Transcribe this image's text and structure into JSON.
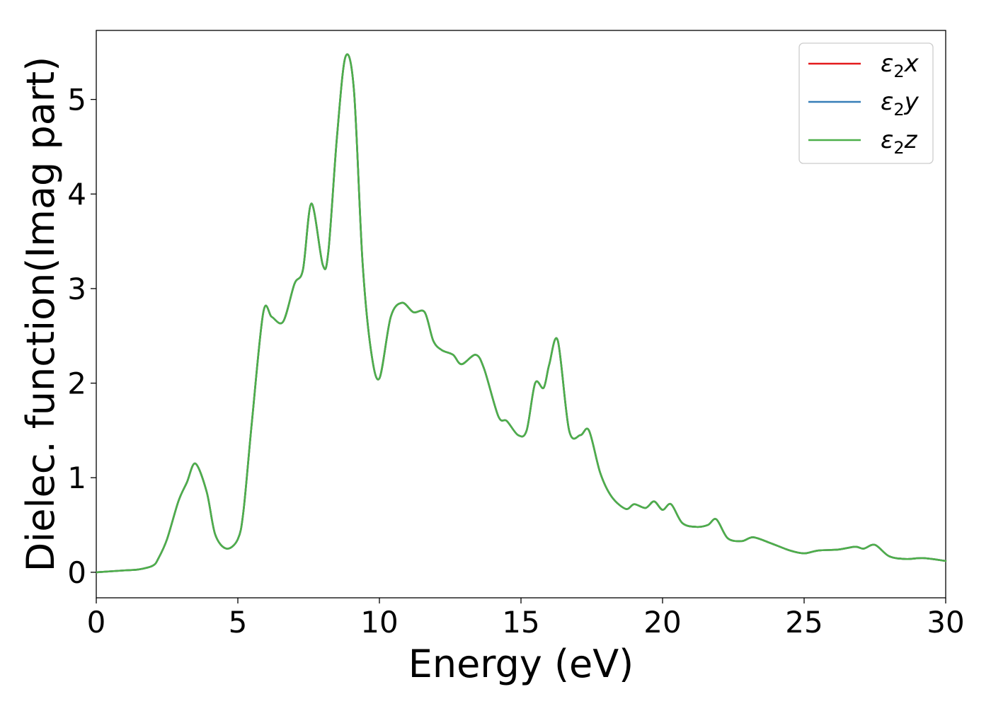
{
  "chart_data": {
    "type": "line",
    "title": "",
    "xlabel": "Energy (eV)",
    "ylabel": "Dielec. function(Imag part)",
    "xlim": [
      0,
      30
    ],
    "ylim": [
      -0.27,
      5.73
    ],
    "xticks": [
      0,
      5,
      10,
      15,
      20,
      25,
      30
    ],
    "yticks": [
      0,
      1,
      2,
      3,
      4,
      5
    ],
    "grid": false,
    "legend_position": "top-right",
    "series": [
      {
        "name": "ε2x",
        "label_main": "ε",
        "label_sub": "2",
        "label_suffix": "x",
        "color": "#e41a1c",
        "x": [
          0,
          1,
          1.5,
          2,
          2.2,
          2.5,
          2.9,
          3.2,
          3.5,
          3.9,
          4.2,
          4.6,
          5.0,
          5.2,
          5.5,
          5.9,
          6.2,
          6.6,
          7.0,
          7.3,
          7.6,
          8.0,
          8.2,
          8.5,
          8.8,
          9.1,
          9.4,
          9.7,
          10.0,
          10.4,
          10.8,
          11.2,
          11.6,
          11.9,
          12.2,
          12.6,
          12.9,
          13.4,
          13.7,
          14.2,
          14.5,
          14.9,
          15.2,
          15.5,
          15.8,
          16.0,
          16.3,
          16.7,
          17.1,
          17.4,
          17.8,
          18.2,
          18.7,
          19.0,
          19.4,
          19.7,
          20.0,
          20.3,
          20.7,
          21.2,
          21.6,
          21.9,
          22.3,
          22.8,
          23.2,
          23.8,
          24.5,
          25.0,
          25.5,
          26.2,
          26.8,
          27.1,
          27.5,
          28.0,
          28.6,
          29.2,
          30.0
        ],
        "y": [
          0.0,
          0.02,
          0.03,
          0.07,
          0.15,
          0.35,
          0.75,
          0.95,
          1.15,
          0.85,
          0.4,
          0.25,
          0.35,
          0.65,
          1.6,
          2.75,
          2.7,
          2.65,
          3.05,
          3.2,
          3.9,
          3.25,
          3.4,
          4.6,
          5.45,
          5.1,
          3.3,
          2.35,
          2.05,
          2.7,
          2.85,
          2.75,
          2.75,
          2.45,
          2.35,
          2.3,
          2.2,
          2.3,
          2.15,
          1.65,
          1.6,
          1.45,
          1.5,
          2.0,
          1.95,
          2.2,
          2.45,
          1.5,
          1.45,
          1.5,
          1.05,
          0.8,
          0.67,
          0.72,
          0.68,
          0.75,
          0.66,
          0.72,
          0.52,
          0.48,
          0.5,
          0.56,
          0.36,
          0.33,
          0.37,
          0.31,
          0.23,
          0.2,
          0.23,
          0.24,
          0.27,
          0.25,
          0.29,
          0.17,
          0.14,
          0.15,
          0.12
        ]
      },
      {
        "name": "ε2y",
        "label_main": "ε",
        "label_sub": "2",
        "label_suffix": "y",
        "color": "#377eb8",
        "x": [
          0,
          1,
          1.5,
          2,
          2.2,
          2.5,
          2.9,
          3.2,
          3.5,
          3.9,
          4.2,
          4.6,
          5.0,
          5.2,
          5.5,
          5.9,
          6.2,
          6.6,
          7.0,
          7.3,
          7.6,
          8.0,
          8.2,
          8.5,
          8.8,
          9.1,
          9.4,
          9.7,
          10.0,
          10.4,
          10.8,
          11.2,
          11.6,
          11.9,
          12.2,
          12.6,
          12.9,
          13.4,
          13.7,
          14.2,
          14.5,
          14.9,
          15.2,
          15.5,
          15.8,
          16.0,
          16.3,
          16.7,
          17.1,
          17.4,
          17.8,
          18.2,
          18.7,
          19.0,
          19.4,
          19.7,
          20.0,
          20.3,
          20.7,
          21.2,
          21.6,
          21.9,
          22.3,
          22.8,
          23.2,
          23.8,
          24.5,
          25.0,
          25.5,
          26.2,
          26.8,
          27.1,
          27.5,
          28.0,
          28.6,
          29.2,
          30.0
        ],
        "y": [
          0.0,
          0.02,
          0.03,
          0.07,
          0.15,
          0.35,
          0.75,
          0.95,
          1.15,
          0.85,
          0.4,
          0.25,
          0.35,
          0.65,
          1.6,
          2.75,
          2.7,
          2.65,
          3.05,
          3.2,
          3.9,
          3.25,
          3.4,
          4.6,
          5.45,
          5.1,
          3.3,
          2.35,
          2.05,
          2.7,
          2.85,
          2.75,
          2.75,
          2.45,
          2.35,
          2.3,
          2.2,
          2.3,
          2.15,
          1.65,
          1.6,
          1.45,
          1.5,
          2.0,
          1.95,
          2.2,
          2.45,
          1.5,
          1.45,
          1.5,
          1.05,
          0.8,
          0.67,
          0.72,
          0.68,
          0.75,
          0.66,
          0.72,
          0.52,
          0.48,
          0.5,
          0.56,
          0.36,
          0.33,
          0.37,
          0.31,
          0.23,
          0.2,
          0.23,
          0.24,
          0.27,
          0.25,
          0.29,
          0.17,
          0.14,
          0.15,
          0.12
        ]
      },
      {
        "name": "ε2z",
        "label_main": "ε",
        "label_sub": "2",
        "label_suffix": "z",
        "color": "#4daf4a",
        "x": [
          0,
          1,
          1.5,
          2,
          2.2,
          2.5,
          2.9,
          3.2,
          3.5,
          3.9,
          4.2,
          4.6,
          5.0,
          5.2,
          5.5,
          5.9,
          6.2,
          6.6,
          7.0,
          7.3,
          7.6,
          8.0,
          8.2,
          8.5,
          8.8,
          9.1,
          9.4,
          9.7,
          10.0,
          10.4,
          10.8,
          11.2,
          11.6,
          11.9,
          12.2,
          12.6,
          12.9,
          13.4,
          13.7,
          14.2,
          14.5,
          14.9,
          15.2,
          15.5,
          15.8,
          16.0,
          16.3,
          16.7,
          17.1,
          17.4,
          17.8,
          18.2,
          18.7,
          19.0,
          19.4,
          19.7,
          20.0,
          20.3,
          20.7,
          21.2,
          21.6,
          21.9,
          22.3,
          22.8,
          23.2,
          23.8,
          24.5,
          25.0,
          25.5,
          26.2,
          26.8,
          27.1,
          27.5,
          28.0,
          28.6,
          29.2,
          30.0
        ],
        "y": [
          0.0,
          0.02,
          0.03,
          0.07,
          0.15,
          0.35,
          0.75,
          0.95,
          1.15,
          0.85,
          0.4,
          0.25,
          0.35,
          0.65,
          1.6,
          2.75,
          2.7,
          2.65,
          3.05,
          3.2,
          3.9,
          3.25,
          3.4,
          4.6,
          5.45,
          5.1,
          3.3,
          2.35,
          2.05,
          2.7,
          2.85,
          2.75,
          2.75,
          2.45,
          2.35,
          2.3,
          2.2,
          2.3,
          2.15,
          1.65,
          1.6,
          1.45,
          1.5,
          2.0,
          1.95,
          2.2,
          2.45,
          1.5,
          1.45,
          1.5,
          1.05,
          0.8,
          0.67,
          0.72,
          0.68,
          0.75,
          0.66,
          0.72,
          0.52,
          0.48,
          0.5,
          0.56,
          0.36,
          0.33,
          0.37,
          0.31,
          0.23,
          0.2,
          0.23,
          0.24,
          0.27,
          0.25,
          0.29,
          0.17,
          0.14,
          0.15,
          0.12
        ]
      }
    ]
  }
}
